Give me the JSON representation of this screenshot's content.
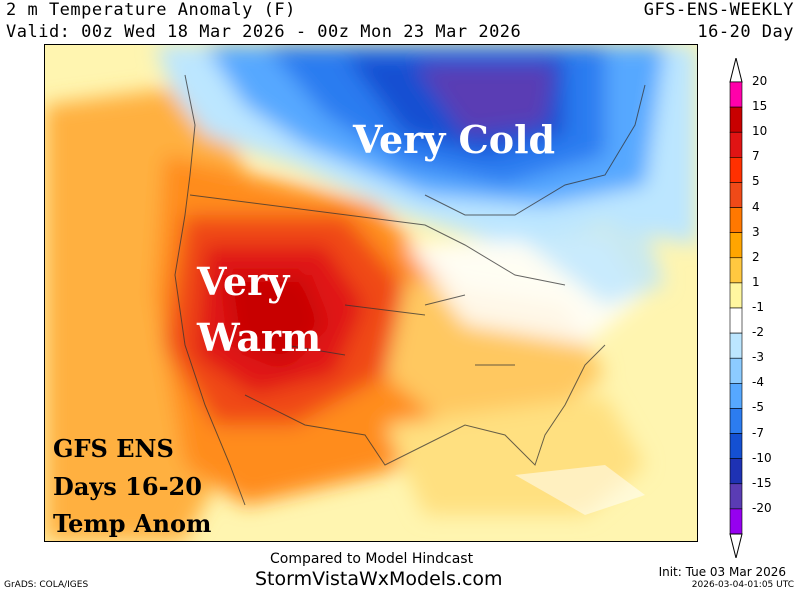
{
  "header": {
    "title_left": "2 m Temperature Anomaly (F)",
    "title_right": "GFS-ENS-WEEKLY",
    "valid_line": "Valid: 00z Wed 18 Mar 2026 - 00z Mon 23 Mar 2026",
    "range_right": "16-20 Day"
  },
  "map_labels": {
    "very_cold": "Very Cold",
    "very_warm_1": "Very",
    "very_warm_2": "Warm",
    "box_1": "GFS ENS",
    "box_2": "Days 16-20",
    "box_3": "Temp Anom"
  },
  "legend": {
    "labels": [
      "20",
      "15",
      "10",
      "7",
      "5",
      "4",
      "3",
      "2",
      "1",
      "-1",
      "-2",
      "-3",
      "-4",
      "-5",
      "-7",
      "-10",
      "-15",
      "-20"
    ],
    "colors": [
      "#ff00aa",
      "#c80000",
      "#e01414",
      "#ff3000",
      "#f04a18",
      "#ff7800",
      "#ffa500",
      "#ffc840",
      "#fff7a0",
      "#ffffff",
      "#bce6ff",
      "#8ccbff",
      "#56a8ff",
      "#2c7cf0",
      "#1450d2",
      "#1e32b4",
      "#5a3cb4",
      "#9600f0"
    ]
  },
  "footer": {
    "compared": "Compared to Model Hindcast",
    "site": "StormVistaWxModels.com",
    "init": "Init: Tue 03 Mar 2026",
    "stamp": "2026-03-04-01:05 UTC",
    "grads": "GrADS: COLA/IGES"
  }
}
